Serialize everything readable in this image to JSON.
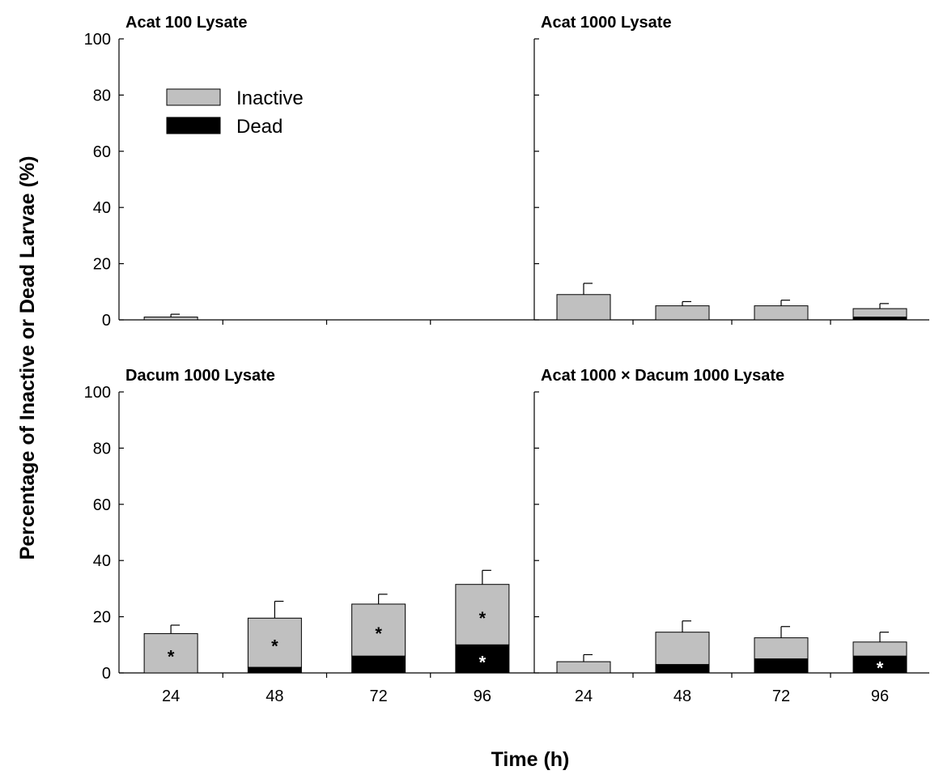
{
  "figure": {
    "ylabel": "Percentage of Inactive or Dead Larvae (%)",
    "xlabel": "Time (h)"
  },
  "legend": {
    "placement": "top-left of first panel",
    "items": [
      {
        "label": "Inactive",
        "color": "#c0c0c0"
      },
      {
        "label": "Dead",
        "color": "#000000"
      }
    ]
  },
  "colors": {
    "inactive": "#c0c0c0",
    "dead": "#000000"
  },
  "chart_data": [
    {
      "type": "bar",
      "stacked": true,
      "title": "Acat 100 Lysate",
      "categories": [
        "24",
        "48",
        "72",
        "96"
      ],
      "series": [
        {
          "name": "Dead",
          "values": [
            0,
            0,
            0,
            0
          ],
          "error": [
            0,
            0,
            0,
            0
          ]
        },
        {
          "name": "Inactive",
          "values": [
            1,
            0,
            0,
            0
          ],
          "error": [
            1,
            0,
            0,
            0
          ]
        }
      ],
      "ylim": [
        0,
        100
      ],
      "yticks": [
        0,
        20,
        40,
        60,
        80,
        100
      ],
      "annotations": []
    },
    {
      "type": "bar",
      "stacked": true,
      "title": "Acat 1000 Lysate",
      "categories": [
        "24",
        "48",
        "72",
        "96"
      ],
      "series": [
        {
          "name": "Dead",
          "values": [
            0,
            0,
            0,
            1
          ],
          "error": [
            0,
            0,
            0,
            1
          ]
        },
        {
          "name": "Inactive",
          "values": [
            9,
            5,
            5,
            3
          ],
          "error": [
            4,
            1.5,
            2,
            1.8
          ]
        }
      ],
      "ylim": [
        0,
        100
      ],
      "yticks": [
        0,
        20,
        40,
        60,
        80,
        100
      ],
      "annotations": []
    },
    {
      "type": "bar",
      "stacked": true,
      "title": "Dacum 1000 Lysate",
      "categories": [
        "24",
        "48",
        "72",
        "96"
      ],
      "series": [
        {
          "name": "Dead",
          "values": [
            0,
            2,
            6,
            10
          ],
          "error": [
            0,
            1.5,
            3,
            4
          ]
        },
        {
          "name": "Inactive",
          "values": [
            14,
            17.5,
            18.5,
            21.5
          ],
          "error": [
            3,
            6,
            3.5,
            5
          ]
        }
      ],
      "ylim": [
        0,
        100
      ],
      "yticks": [
        0,
        20,
        40,
        60,
        80,
        100
      ],
      "annotations": [
        {
          "category": "24",
          "segment": "Inactive",
          "text": "*"
        },
        {
          "category": "48",
          "segment": "Inactive",
          "text": "*"
        },
        {
          "category": "72",
          "segment": "Inactive",
          "text": "*"
        },
        {
          "category": "96",
          "segment": "Inactive",
          "text": "*"
        },
        {
          "category": "96",
          "segment": "Dead",
          "text": "*"
        }
      ]
    },
    {
      "type": "bar",
      "stacked": true,
      "title": "Acat 1000 × Dacum 1000 Lysate",
      "categories": [
        "24",
        "48",
        "72",
        "96"
      ],
      "series": [
        {
          "name": "Dead",
          "values": [
            0,
            3,
            5,
            6
          ],
          "error": [
            0,
            1.5,
            2,
            2.5
          ]
        },
        {
          "name": "Inactive",
          "values": [
            4,
            11.5,
            7.5,
            5
          ],
          "error": [
            2.5,
            4,
            4,
            3.5
          ]
        }
      ],
      "ylim": [
        0,
        100
      ],
      "yticks": [
        0,
        20,
        40,
        60,
        80,
        100
      ],
      "annotations": [
        {
          "category": "96",
          "segment": "Dead",
          "text": "*"
        }
      ]
    }
  ]
}
